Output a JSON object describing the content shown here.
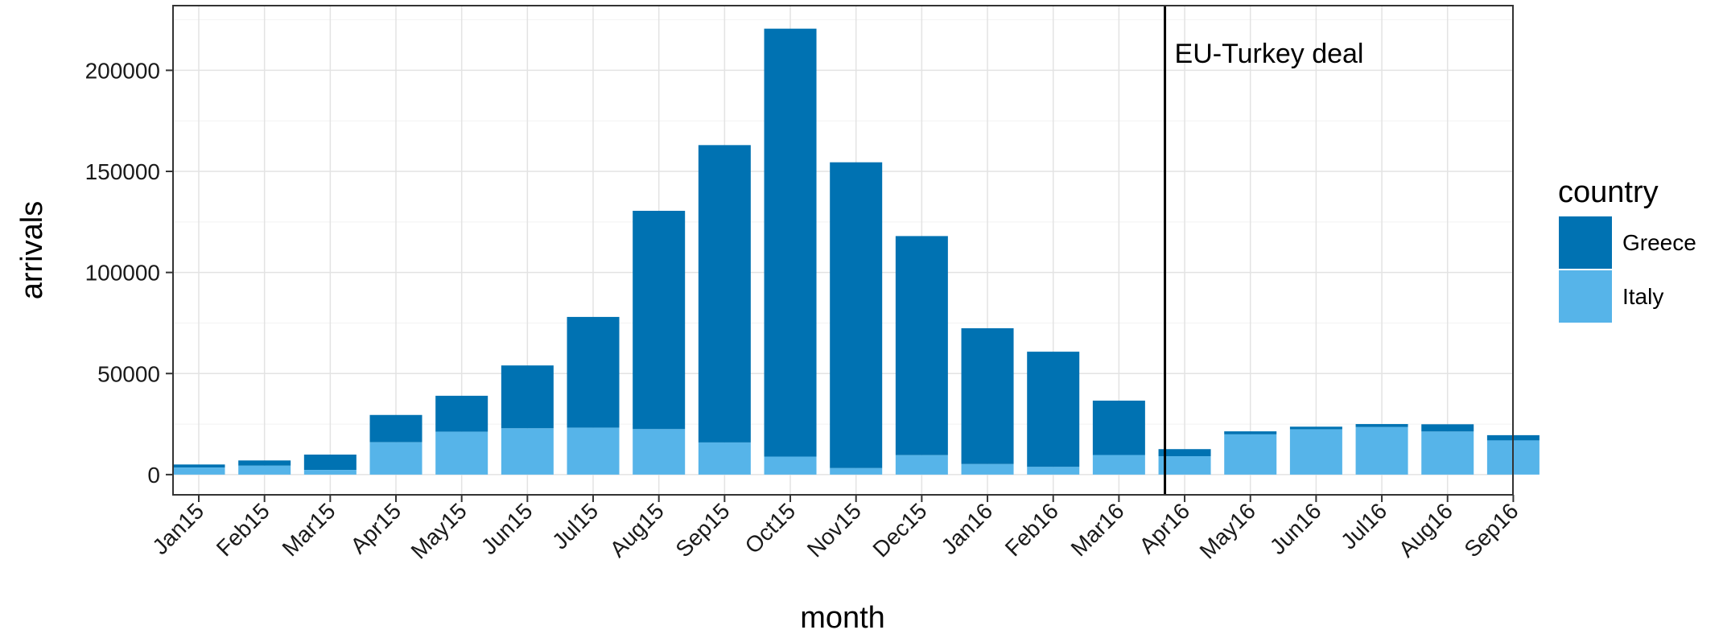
{
  "chart_data": {
    "type": "bar",
    "stacked": true,
    "xlabel": "month",
    "ylabel": "arrivals",
    "ylim": [
      -10000,
      232000
    ],
    "yticks": [
      0,
      50000,
      100000,
      150000,
      200000
    ],
    "ytick_labels": [
      "0",
      "50000",
      "100000",
      "150000",
      "200000"
    ],
    "grid": true,
    "legend_position": "right",
    "legend_title": "country",
    "categories": [
      "Jan15",
      "Feb15",
      "Mar15",
      "Apr15",
      "May15",
      "Jun15",
      "Jul15",
      "Aug15",
      "Sep15",
      "Oct15",
      "Nov15",
      "Dec15",
      "Jan16",
      "Feb16",
      "Mar16",
      "Apr16",
      "May16",
      "Jun16",
      "Jul16",
      "Aug16",
      "Sep16"
    ],
    "series": [
      {
        "name": "Italy",
        "color": "#56B4E9",
        "values": [
          3500,
          4400,
          2300,
          16000,
          21200,
          22900,
          23200,
          22500,
          15900,
          8900,
          3200,
          9600,
          5200,
          3800,
          9700,
          9100,
          19900,
          22400,
          23500,
          21300,
          16900
        ]
      },
      {
        "name": "Greece",
        "color": "#0072B2",
        "values": [
          1500,
          2600,
          7600,
          13500,
          17800,
          31100,
          54800,
          108000,
          147100,
          211700,
          151300,
          108400,
          67200,
          57000,
          26900,
          3500,
          1500,
          1300,
          1500,
          3600,
          2600
        ]
      }
    ],
    "annotation": {
      "label": "EU-Turkey deal",
      "x_between": [
        "Mar16",
        "Apr16"
      ],
      "position": 14.7
    }
  }
}
